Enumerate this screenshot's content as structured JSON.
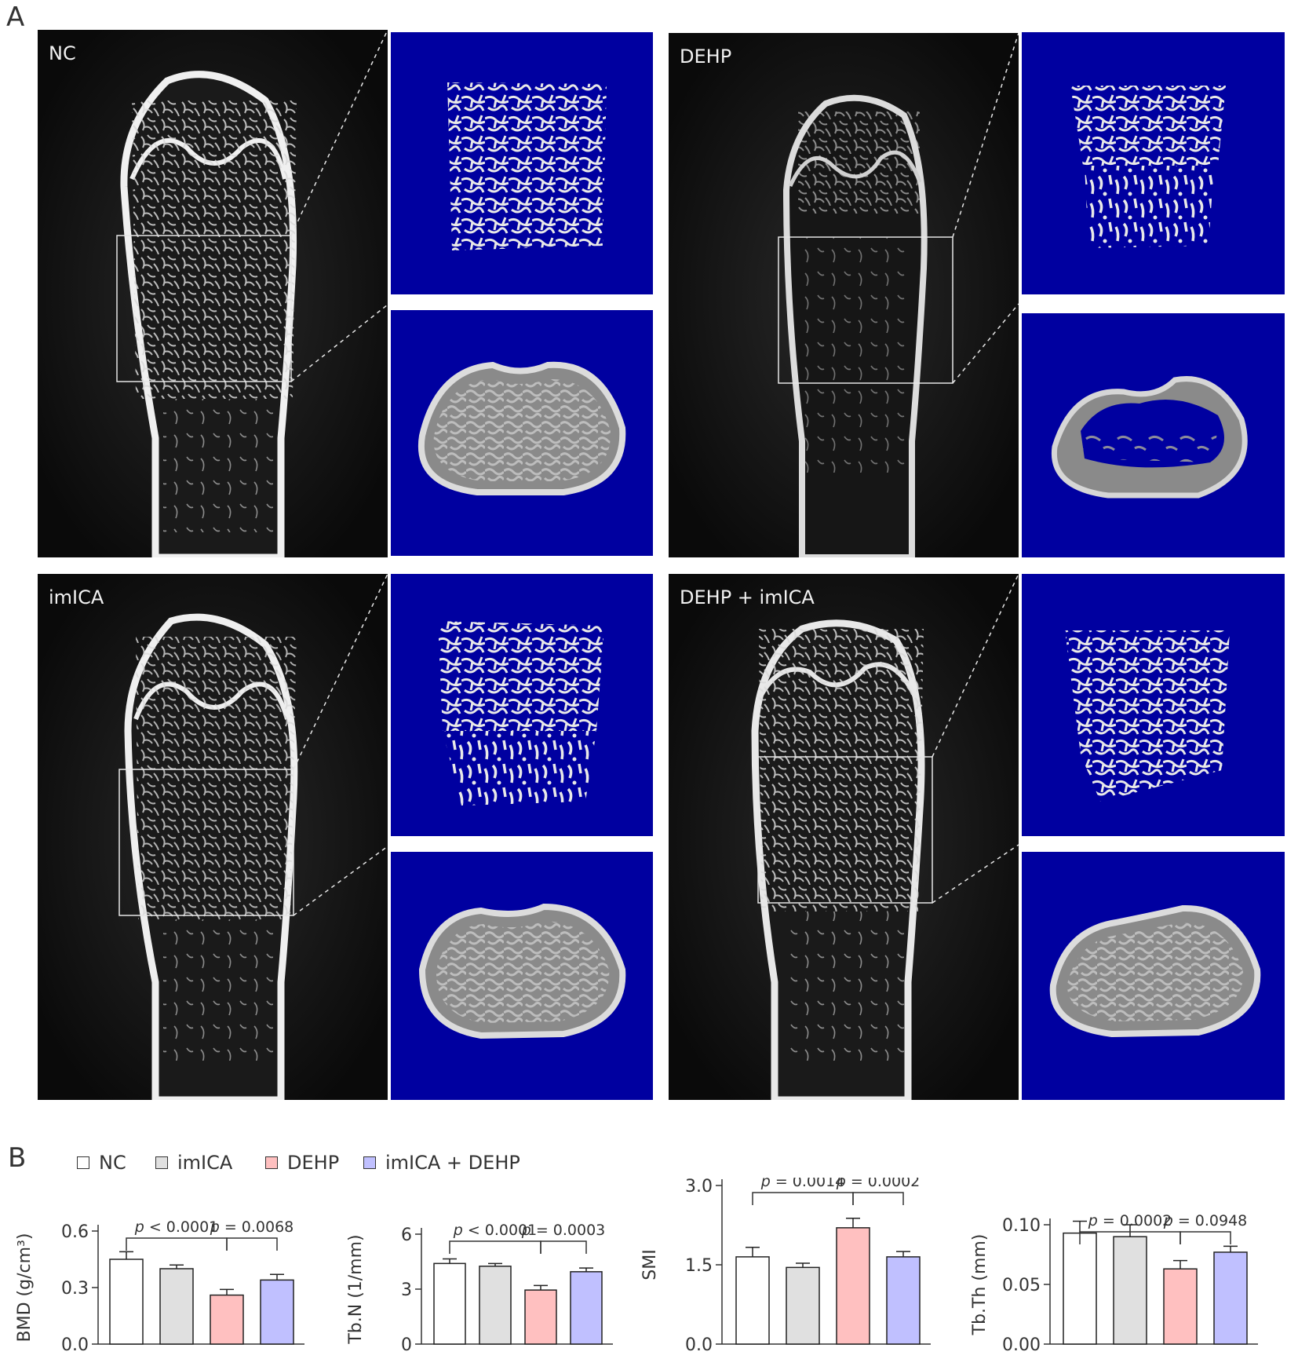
{
  "panel_a": {
    "letter": "A",
    "groups": [
      {
        "label": "NC"
      },
      {
        "label": "DEHP"
      },
      {
        "label": "imICA"
      },
      {
        "label": "DEHP + imICA"
      }
    ]
  },
  "panel_b": {
    "letter": "B",
    "legend": [
      {
        "label": "NC",
        "color": "#ffffff"
      },
      {
        "label": "imICA",
        "color": "#e0e0e0"
      },
      {
        "label": "DEHP",
        "color": "#ffc0c0"
      },
      {
        "label": "imICA + DEHP",
        "color": "#c0c0ff"
      }
    ]
  },
  "chart_data": [
    {
      "type": "bar",
      "categories": [
        "NC",
        "imICA",
        "DEHP",
        "imICA + DEHP"
      ],
      "values": [
        0.45,
        0.4,
        0.26,
        0.34
      ],
      "errors": [
        0.04,
        0.02,
        0.03,
        0.03
      ],
      "ylabel": "BMD (g/cm³)",
      "ylim": [
        0,
        0.6
      ],
      "yticks": [
        "0.0",
        "0.3",
        "0.6"
      ],
      "annotations": [
        {
          "p": "p",
          "op": "<",
          "val": "0.0001",
          "from": 0,
          "to": 2
        },
        {
          "p": "p",
          "op": "=",
          "val": "0.0068",
          "from": 2,
          "to": 3
        }
      ]
    },
    {
      "type": "bar",
      "categories": [
        "NC",
        "imICA",
        "DEHP",
        "imICA + DEHP"
      ],
      "values": [
        4.4,
        4.25,
        2.95,
        3.95
      ],
      "errors": [
        0.25,
        0.15,
        0.25,
        0.2
      ],
      "ylabel": "Tb.N (1/mm)",
      "ylim": [
        0,
        6
      ],
      "yticks": [
        "0",
        "3",
        "6"
      ],
      "annotations": [
        {
          "p": "p",
          "op": "<",
          "val": "0.0001",
          "from": 0,
          "to": 2
        },
        {
          "p": "p",
          "op": "=",
          "val": "0.0003",
          "from": 2,
          "to": 3
        }
      ]
    },
    {
      "type": "bar",
      "categories": [
        "NC",
        "imICA",
        "DEHP",
        "imICA + DEHP"
      ],
      "values": [
        1.65,
        1.45,
        2.2,
        1.65
      ],
      "errors": [
        0.18,
        0.08,
        0.18,
        0.1
      ],
      "ylabel": "SMI",
      "ylim": [
        0,
        3
      ],
      "yticks": [
        "0.0",
        "1.5",
        "3.0"
      ],
      "annotations": [
        {
          "p": "p",
          "op": "=",
          "val": "0.0014",
          "from": 0,
          "to": 2
        },
        {
          "p": "p",
          "op": "=",
          "val": "0.0002",
          "from": 2,
          "to": 3
        }
      ]
    },
    {
      "type": "bar",
      "categories": [
        "NC",
        "imICA",
        "DEHP",
        "imICA + DEHP"
      ],
      "values": [
        0.093,
        0.09,
        0.063,
        0.077
      ],
      "errors": [
        0.01,
        0.01,
        0.007,
        0.005
      ],
      "ylabel": "Tb.Th (mm)",
      "ylim": [
        0,
        0.1
      ],
      "yticks": [
        "0.00",
        "0.05",
        "0.10"
      ],
      "annotations": [
        {
          "p": "p",
          "op": "=",
          "val": "0.0002",
          "from": 0,
          "to": 2
        },
        {
          "p": "p",
          "op": "=",
          "val": "0.0948",
          "from": 2,
          "to": 3
        }
      ]
    }
  ]
}
